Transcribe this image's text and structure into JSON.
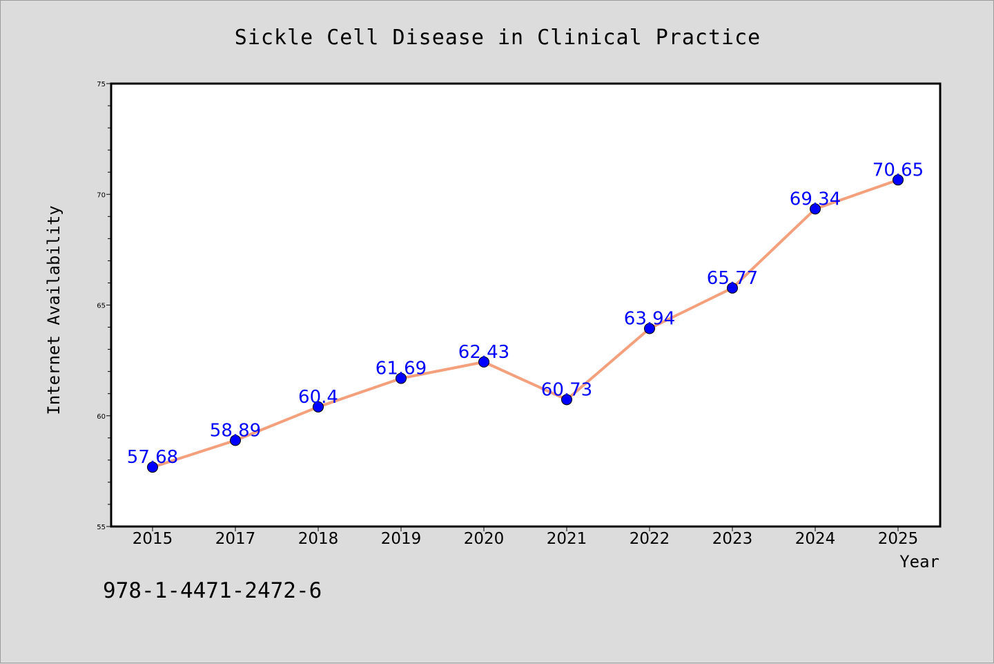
{
  "chart_data": {
    "type": "line",
    "title": "Sickle Cell Disease in Clinical Practice",
    "xlabel": "Year",
    "ylabel": "Internet Availability",
    "categories": [
      "2015",
      "2017",
      "2018",
      "2019",
      "2020",
      "2021",
      "2022",
      "2023",
      "2024",
      "2025"
    ],
    "series": [
      {
        "values": [
          57.68,
          58.89,
          60.4,
          61.69,
          62.43,
          60.73,
          63.94,
          65.77,
          69.34,
          70.65
        ],
        "data_labels": [
          "57.68",
          "58.89",
          "60.4",
          "61.69",
          "62.43",
          "60.73",
          "63.94",
          "65.77",
          "69.34",
          "70.65"
        ]
      }
    ],
    "ylim": [
      55,
      75
    ],
    "yticks": [
      "55",
      "60",
      "65",
      "70",
      "75"
    ],
    "grid": false,
    "legend": "none",
    "colors": {
      "line": "#f4a07c",
      "marker": "#0000ff",
      "data_label": "#0000ff",
      "background": "#dcdcdc",
      "plot_background": "#ffffff"
    }
  },
  "annotation": {
    "isbn": "978-1-4471-2472-6"
  }
}
